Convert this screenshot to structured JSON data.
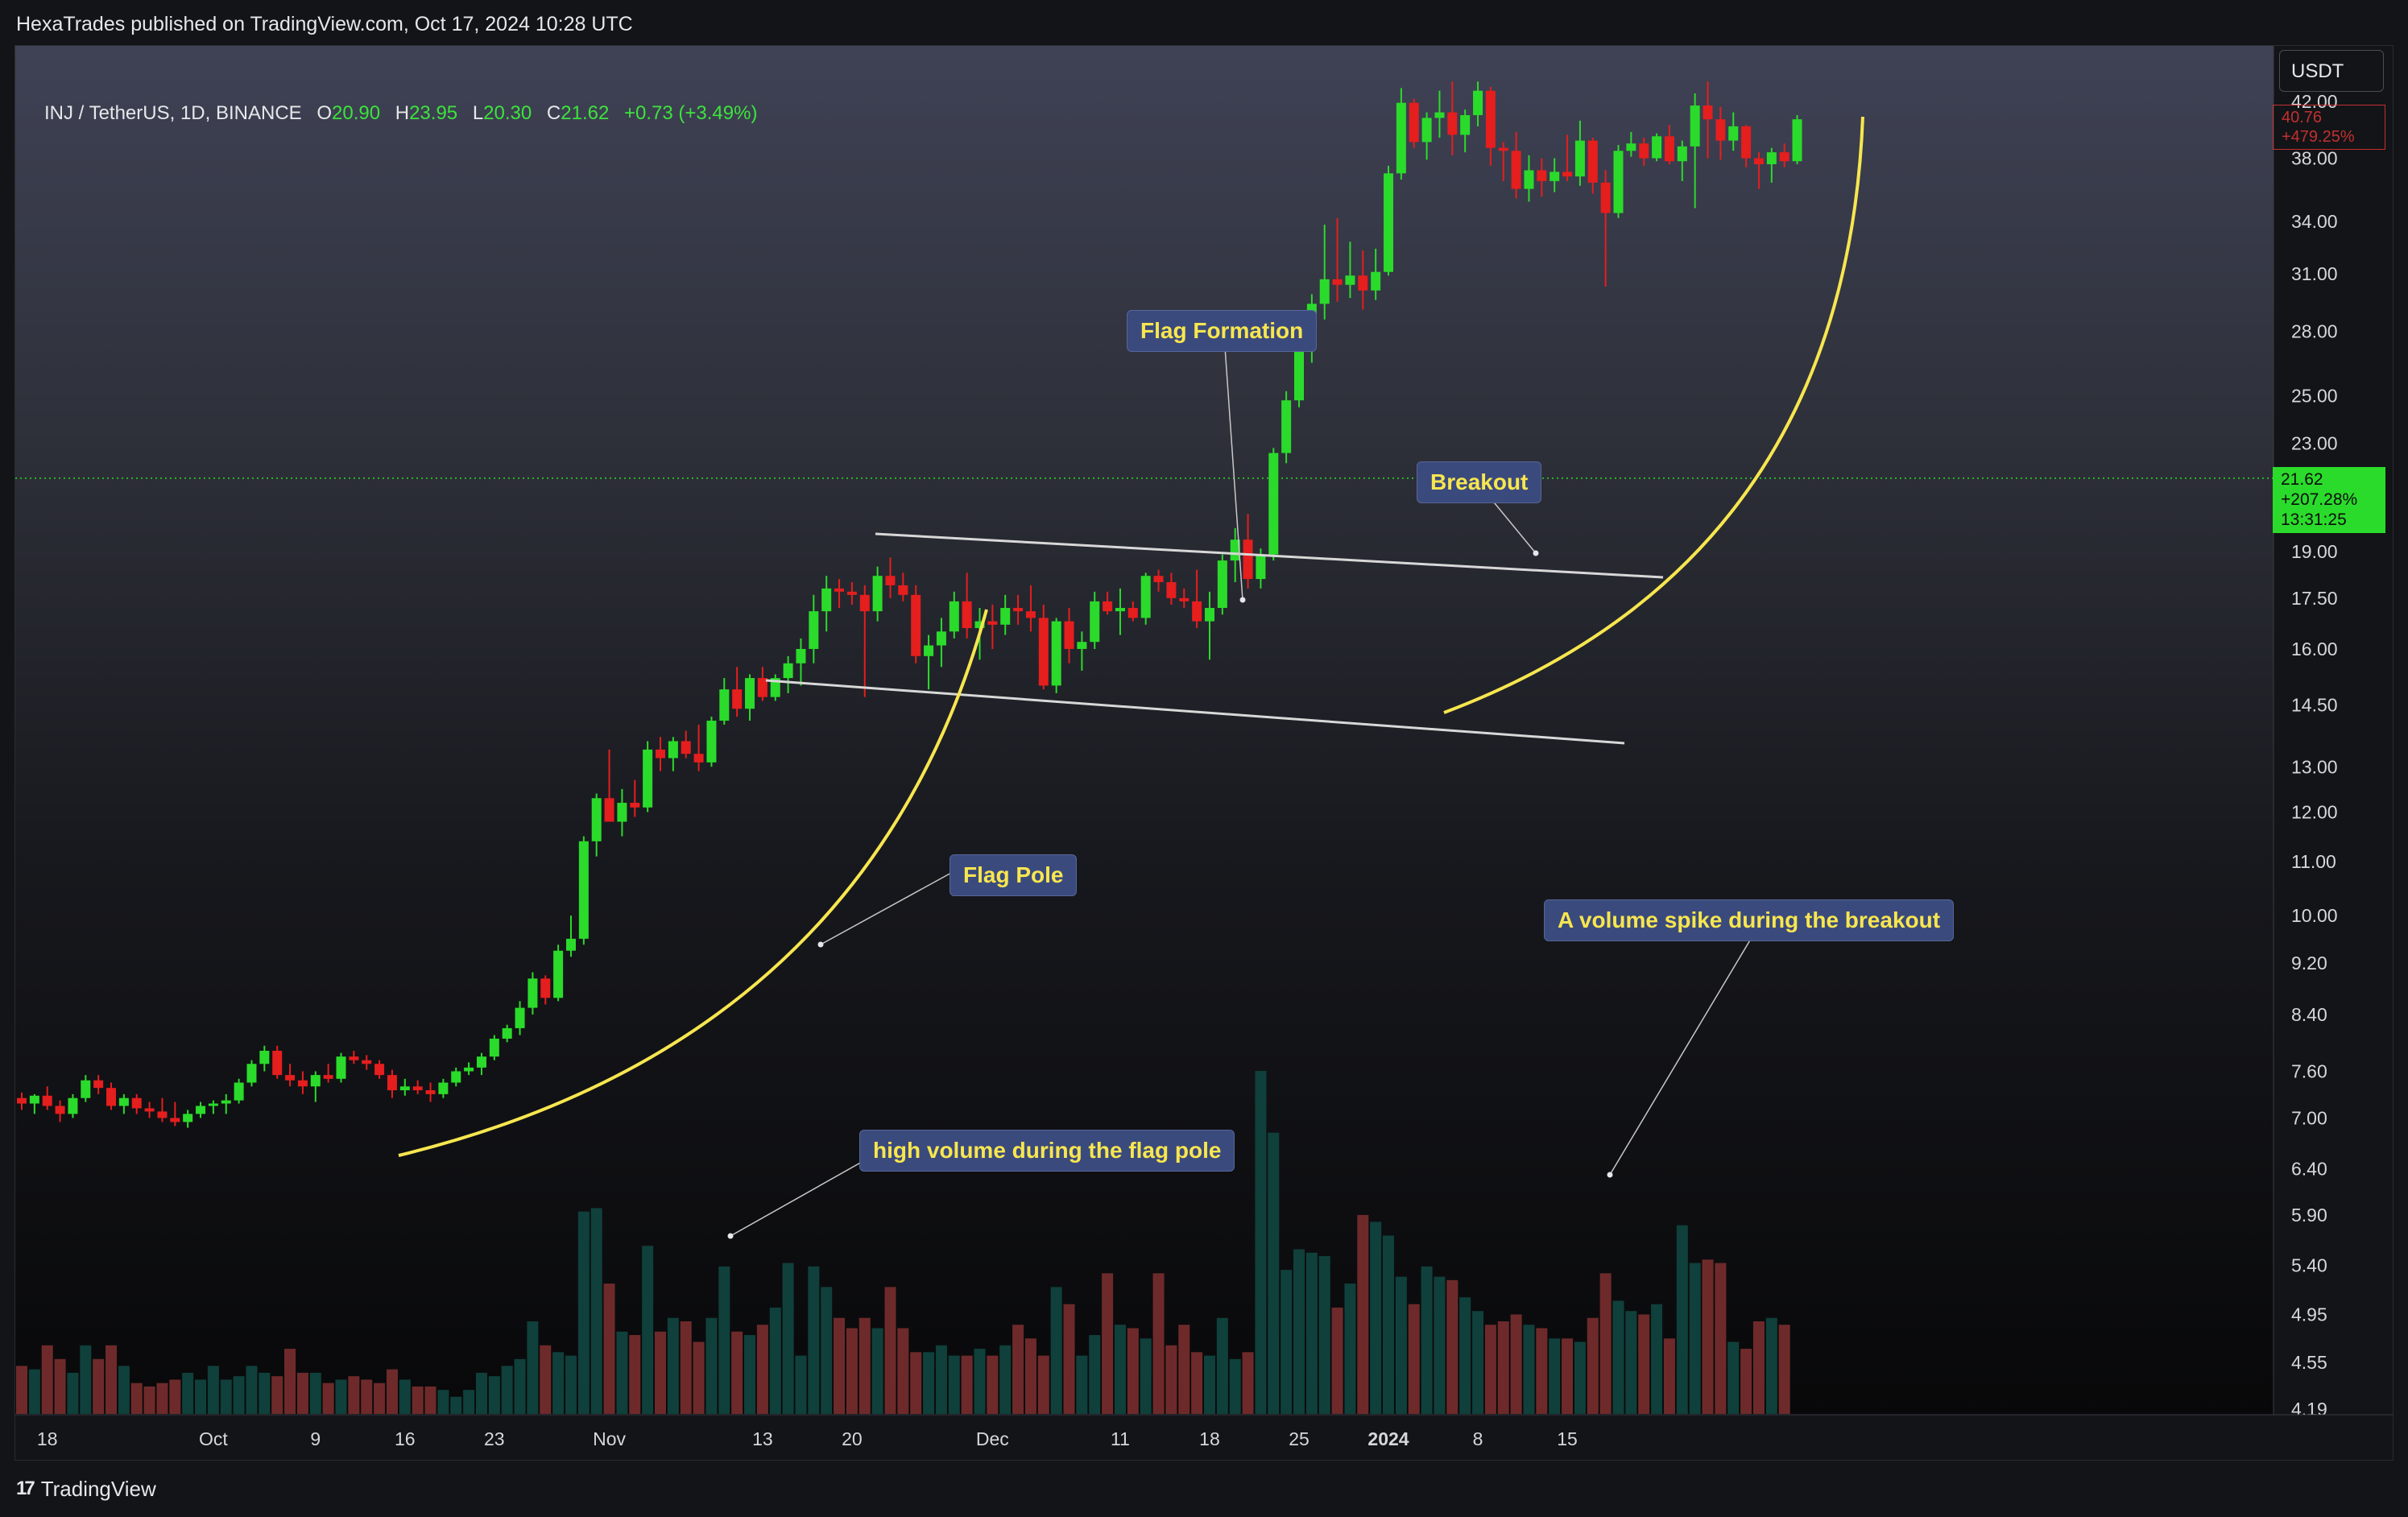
{
  "header": {
    "publisher_line": "HexaTrades published on TradingView.com, Oct 17, 2024 10:28 UTC"
  },
  "legend": {
    "symbol": "INJ / TetherUS, 1D, BINANCE",
    "o_label": "O",
    "o_value": "20.90",
    "h_label": "H",
    "h_value": "23.95",
    "l_label": "L",
    "l_value": "20.30",
    "c_label": "C",
    "c_value": "21.62",
    "change": "+0.73 (+3.49%)"
  },
  "price_axis": {
    "currency": "USDT",
    "current_price": "21.62",
    "current_change": "+207.28%",
    "countdown": "13:31:25",
    "top_price": "40.76",
    "top_change": "+479.25%"
  },
  "annotations": {
    "flag_formation": "Flag Formation",
    "breakout": "Breakout",
    "flag_pole": "Flag Pole",
    "volume_spike": "A volume spike during the breakout",
    "high_volume": "high volume during the flag pole"
  },
  "footer": {
    "brand": "TradingView",
    "logo_glyph": "17"
  },
  "colors": {
    "up": "#2bdb2b",
    "down": "#e51e1e",
    "vol_up": "#10403b",
    "vol_down": "#6e2a2a",
    "curve": "#f7e64f",
    "trendline": "#d8d8d8",
    "annotation_bg": "#3b4a7c",
    "annotation_text": "#f7e64f"
  },
  "chart_data": {
    "type": "candlestick",
    "scale": "log",
    "price_ticks": [
      42.0,
      38.0,
      34.0,
      31.0,
      28.0,
      25.0,
      23.0,
      19.0,
      17.5,
      16.0,
      14.5,
      13.0,
      12.0,
      11.0,
      10.0,
      9.2,
      8.4,
      7.6,
      7.0,
      6.4,
      5.9,
      5.4,
      4.95,
      4.55,
      4.19
    ],
    "date_labels": [
      {
        "date": "2023-09-18",
        "label": "18"
      },
      {
        "date": "2023-10-01",
        "label": "Oct"
      },
      {
        "date": "2023-10-09",
        "label": "9"
      },
      {
        "date": "2023-10-16",
        "label": "16"
      },
      {
        "date": "2023-10-23",
        "label": "23"
      },
      {
        "date": "2023-11-01",
        "label": "Nov"
      },
      {
        "date": "2023-11-13",
        "label": "13"
      },
      {
        "date": "2023-11-20",
        "label": "20"
      },
      {
        "date": "2023-12-01",
        "label": "Dec"
      },
      {
        "date": "2023-12-11",
        "label": "11"
      },
      {
        "date": "2023-12-18",
        "label": "18"
      },
      {
        "date": "2023-12-25",
        "label": "25"
      },
      {
        "date": "2024-01-01",
        "label": "2024",
        "bold": true
      },
      {
        "date": "2024-01-08",
        "label": "8"
      },
      {
        "date": "2024-01-15",
        "label": "15"
      }
    ],
    "candles": [
      [
        "2023-09-16",
        7.25,
        7.32,
        7.1,
        7.18
      ],
      [
        "2023-09-17",
        7.18,
        7.3,
        7.05,
        7.28
      ],
      [
        "2023-09-18",
        7.28,
        7.4,
        7.1,
        7.15
      ],
      [
        "2023-09-19",
        7.15,
        7.22,
        6.95,
        7.05
      ],
      [
        "2023-09-20",
        7.05,
        7.3,
        7.0,
        7.25
      ],
      [
        "2023-09-21",
        7.25,
        7.55,
        7.2,
        7.48
      ],
      [
        "2023-09-22",
        7.48,
        7.55,
        7.3,
        7.38
      ],
      [
        "2023-09-23",
        7.38,
        7.45,
        7.1,
        7.15
      ],
      [
        "2023-09-24",
        7.15,
        7.3,
        7.05,
        7.25
      ],
      [
        "2023-09-25",
        7.25,
        7.3,
        7.05,
        7.12
      ],
      [
        "2023-09-26",
        7.12,
        7.2,
        7.0,
        7.08
      ],
      [
        "2023-09-27",
        7.08,
        7.25,
        6.95,
        7.0
      ],
      [
        "2023-09-28",
        7.0,
        7.2,
        6.9,
        6.95
      ],
      [
        "2023-09-29",
        6.95,
        7.1,
        6.88,
        7.05
      ],
      [
        "2023-09-30",
        7.05,
        7.2,
        7.0,
        7.15
      ],
      [
        "2023-10-01",
        7.15,
        7.22,
        7.05,
        7.18
      ],
      [
        "2023-10-02",
        7.18,
        7.3,
        7.05,
        7.22
      ],
      [
        "2023-10-03",
        7.22,
        7.5,
        7.18,
        7.45
      ],
      [
        "2023-10-04",
        7.45,
        7.75,
        7.4,
        7.7
      ],
      [
        "2023-10-05",
        7.7,
        7.95,
        7.6,
        7.88
      ],
      [
        "2023-10-06",
        7.88,
        7.95,
        7.5,
        7.55
      ],
      [
        "2023-10-07",
        7.55,
        7.7,
        7.4,
        7.48
      ],
      [
        "2023-10-08",
        7.48,
        7.6,
        7.3,
        7.4
      ],
      [
        "2023-10-09",
        7.4,
        7.6,
        7.2,
        7.55
      ],
      [
        "2023-10-10",
        7.55,
        7.7,
        7.45,
        7.5
      ],
      [
        "2023-10-11",
        7.5,
        7.85,
        7.45,
        7.8
      ],
      [
        "2023-10-12",
        7.8,
        7.88,
        7.7,
        7.75
      ],
      [
        "2023-10-13",
        7.75,
        7.82,
        7.62,
        7.7
      ],
      [
        "2023-10-14",
        7.7,
        7.75,
        7.5,
        7.55
      ],
      [
        "2023-10-15",
        7.55,
        7.62,
        7.25,
        7.35
      ],
      [
        "2023-10-16",
        7.35,
        7.5,
        7.28,
        7.4
      ],
      [
        "2023-10-17",
        7.4,
        7.48,
        7.3,
        7.35
      ],
      [
        "2023-10-18",
        7.35,
        7.45,
        7.2,
        7.3
      ],
      [
        "2023-10-19",
        7.3,
        7.5,
        7.25,
        7.45
      ],
      [
        "2023-10-20",
        7.45,
        7.65,
        7.4,
        7.6
      ],
      [
        "2023-10-21",
        7.6,
        7.72,
        7.55,
        7.65
      ],
      [
        "2023-10-22",
        7.65,
        7.85,
        7.55,
        7.8
      ],
      [
        "2023-10-23",
        7.8,
        8.1,
        7.75,
        8.05
      ],
      [
        "2023-10-24",
        8.05,
        8.25,
        8.0,
        8.2
      ],
      [
        "2023-10-25",
        8.2,
        8.6,
        8.1,
        8.5
      ],
      [
        "2023-10-26",
        8.5,
        9.05,
        8.4,
        8.95
      ],
      [
        "2023-10-27",
        8.95,
        9.0,
        8.55,
        8.65
      ],
      [
        "2023-10-28",
        8.65,
        9.5,
        8.6,
        9.4
      ],
      [
        "2023-10-29",
        9.4,
        10.0,
        9.3,
        9.6
      ],
      [
        "2023-10-30",
        9.6,
        11.5,
        9.5,
        11.4
      ],
      [
        "2023-10-31",
        11.4,
        12.4,
        11.1,
        12.3
      ],
      [
        "2023-11-01",
        12.3,
        13.4,
        12.0,
        11.8
      ],
      [
        "2023-11-02",
        11.8,
        12.5,
        11.5,
        12.2
      ],
      [
        "2023-11-03",
        12.2,
        12.7,
        11.9,
        12.1
      ],
      [
        "2023-11-04",
        12.1,
        13.6,
        12.0,
        13.4
      ],
      [
        "2023-11-05",
        13.4,
        13.7,
        12.9,
        13.2
      ],
      [
        "2023-11-06",
        13.2,
        13.7,
        12.9,
        13.6
      ],
      [
        "2023-11-07",
        13.6,
        13.85,
        13.2,
        13.3
      ],
      [
        "2023-11-08",
        13.3,
        14.0,
        12.9,
        13.1
      ],
      [
        "2023-11-09",
        13.1,
        14.2,
        13.0,
        14.1
      ],
      [
        "2023-11-10",
        14.1,
        15.2,
        14.0,
        14.9
      ],
      [
        "2023-11-11",
        14.9,
        15.5,
        14.2,
        14.4
      ],
      [
        "2023-11-12",
        14.4,
        15.3,
        14.1,
        15.2
      ],
      [
        "2023-11-13",
        15.2,
        15.5,
        14.6,
        14.7
      ],
      [
        "2023-11-14",
        14.7,
        15.3,
        14.6,
        15.2
      ],
      [
        "2023-11-15",
        15.2,
        15.8,
        14.8,
        15.6
      ],
      [
        "2023-11-16",
        15.6,
        16.3,
        15.0,
        16.0
      ],
      [
        "2023-11-17",
        16.0,
        17.6,
        15.6,
        17.1
      ],
      [
        "2023-11-18",
        17.1,
        18.2,
        16.5,
        17.8
      ],
      [
        "2023-11-19",
        17.8,
        18.1,
        17.2,
        17.7
      ],
      [
        "2023-11-20",
        17.7,
        18.0,
        17.3,
        17.6
      ],
      [
        "2023-11-21",
        17.6,
        17.9,
        14.7,
        17.1
      ],
      [
        "2023-11-22",
        17.1,
        18.5,
        16.8,
        18.2
      ],
      [
        "2023-11-23",
        18.2,
        18.8,
        17.5,
        17.9
      ],
      [
        "2023-11-24",
        17.9,
        18.3,
        17.4,
        17.6
      ],
      [
        "2023-11-25",
        17.6,
        17.9,
        15.6,
        15.8
      ],
      [
        "2023-11-26",
        15.8,
        16.4,
        14.9,
        16.1
      ],
      [
        "2023-11-27",
        16.1,
        16.9,
        15.5,
        16.5
      ],
      [
        "2023-11-28",
        16.5,
        17.7,
        16.3,
        17.4
      ],
      [
        "2023-11-29",
        17.4,
        18.3,
        16.3,
        16.6
      ],
      [
        "2023-11-30",
        16.6,
        17.2,
        15.7,
        16.8
      ],
      [
        "2023-12-01",
        16.8,
        17.3,
        16.0,
        16.7
      ],
      [
        "2023-12-02",
        16.7,
        17.6,
        16.4,
        17.2
      ],
      [
        "2023-12-03",
        17.2,
        17.6,
        16.7,
        17.1
      ],
      [
        "2023-12-04",
        17.1,
        17.9,
        16.5,
        16.9
      ],
      [
        "2023-12-05",
        16.9,
        17.3,
        14.9,
        15.0
      ],
      [
        "2023-12-06",
        15.0,
        16.9,
        14.8,
        16.8
      ],
      [
        "2023-12-07",
        16.8,
        17.2,
        15.6,
        16.0
      ],
      [
        "2023-12-08",
        16.0,
        16.5,
        15.4,
        16.2
      ],
      [
        "2023-12-09",
        16.2,
        17.7,
        16.0,
        17.4
      ],
      [
        "2023-12-10",
        17.4,
        17.7,
        17.0,
        17.1
      ],
      [
        "2023-12-11",
        17.1,
        17.8,
        16.4,
        17.2
      ],
      [
        "2023-12-12",
        17.2,
        17.4,
        16.8,
        16.9
      ],
      [
        "2023-12-13",
        16.9,
        18.3,
        16.7,
        18.2
      ],
      [
        "2023-12-14",
        18.2,
        18.4,
        17.7,
        18.0
      ],
      [
        "2023-12-15",
        18.0,
        18.3,
        17.3,
        17.5
      ],
      [
        "2023-12-16",
        17.5,
        17.8,
        17.2,
        17.4
      ],
      [
        "2023-12-17",
        17.4,
        18.4,
        16.6,
        16.8
      ],
      [
        "2023-12-18",
        16.8,
        17.7,
        15.7,
        17.2
      ],
      [
        "2023-12-19",
        17.2,
        18.9,
        17.0,
        18.7
      ],
      [
        "2023-12-20",
        18.7,
        19.8,
        18.0,
        19.4
      ],
      [
        "2023-12-21",
        19.4,
        20.3,
        17.8,
        18.1
      ],
      [
        "2023-12-22",
        18.1,
        19.1,
        17.8,
        18.9
      ],
      [
        "2023-12-23",
        18.9,
        22.8,
        18.7,
        22.6
      ],
      [
        "2023-12-24",
        22.6,
        25.2,
        22.2,
        24.8
      ],
      [
        "2023-12-25",
        24.8,
        27.9,
        24.5,
        27.5
      ],
      [
        "2023-12-26",
        27.5,
        29.9,
        26.5,
        29.4
      ],
      [
        "2023-12-27",
        29.4,
        33.8,
        28.6,
        30.7
      ],
      [
        "2023-12-28",
        30.7,
        34.2,
        29.5,
        30.4
      ],
      [
        "2023-12-29",
        30.4,
        32.8,
        29.7,
        30.9
      ],
      [
        "2023-12-30",
        30.9,
        32.3,
        29.1,
        30.1
      ],
      [
        "2023-12-31",
        30.1,
        32.4,
        29.6,
        31.1
      ],
      [
        "2024-01-01",
        31.1,
        37.5,
        30.9,
        37.0
      ],
      [
        "2024-01-02",
        37.0,
        43.0,
        36.6,
        41.9
      ],
      [
        "2024-01-03",
        41.9,
        42.2,
        38.7,
        39.1
      ],
      [
        "2024-01-04",
        39.1,
        41.2,
        37.9,
        40.8
      ],
      [
        "2024-01-05",
        40.8,
        42.8,
        39.4,
        41.2
      ],
      [
        "2024-01-06",
        41.2,
        43.5,
        38.2,
        39.6
      ],
      [
        "2024-01-07",
        39.6,
        41.4,
        38.4,
        41.0
      ],
      [
        "2024-01-08",
        41.0,
        43.5,
        40.2,
        42.8
      ],
      [
        "2024-01-09",
        42.8,
        43.1,
        37.5,
        38.7
      ],
      [
        "2024-01-10",
        38.7,
        39.1,
        36.5,
        38.5
      ],
      [
        "2024-01-11",
        38.5,
        39.8,
        35.4,
        36.0
      ],
      [
        "2024-01-12",
        36.0,
        38.2,
        35.2,
        37.2
      ],
      [
        "2024-01-13",
        37.2,
        38.0,
        35.5,
        36.5
      ],
      [
        "2024-01-14",
        36.5,
        38.0,
        35.8,
        37.1
      ],
      [
        "2024-01-15",
        37.1,
        39.6,
        36.5,
        36.8
      ],
      [
        "2024-01-16",
        36.8,
        40.6,
        36.2,
        39.2
      ],
      [
        "2024-01-17",
        39.2,
        39.4,
        35.7,
        36.4
      ],
      [
        "2024-01-18",
        36.4,
        37.2,
        30.3,
        34.5
      ],
      [
        "2024-01-19",
        34.5,
        38.9,
        34.2,
        38.5
      ],
      [
        "2024-01-20",
        38.5,
        39.8,
        38.1,
        39.0
      ],
      [
        "2024-01-21",
        39.0,
        39.4,
        37.5,
        38.0
      ],
      [
        "2024-01-22",
        38.0,
        39.7,
        37.8,
        39.5
      ],
      [
        "2024-01-23",
        39.5,
        40.3,
        37.6,
        37.8
      ],
      [
        "2024-01-24",
        37.8,
        39.2,
        36.5,
        38.8
      ],
      [
        "2024-01-25",
        38.8,
        42.6,
        34.8,
        41.7
      ],
      [
        "2024-01-26",
        41.7,
        43.5,
        38.0,
        40.7
      ],
      [
        "2024-01-27",
        40.7,
        41.6,
        37.9,
        39.2
      ],
      [
        "2024-01-28",
        39.2,
        41.2,
        38.5,
        40.2
      ],
      [
        "2024-01-29",
        40.2,
        40.3,
        37.4,
        38.0
      ],
      [
        "2024-01-30",
        38.0,
        38.4,
        36.0,
        37.6
      ],
      [
        "2024-01-31",
        37.6,
        38.7,
        36.4,
        38.4
      ],
      [
        "2024-02-01",
        38.4,
        39.0,
        37.4,
        37.8
      ],
      [
        "2024-02-02",
        37.8,
        41.0,
        37.6,
        40.7
      ]
    ],
    "volumes_relative": [
      0.14,
      0.13,
      0.2,
      0.16,
      0.12,
      0.2,
      0.16,
      0.2,
      0.14,
      0.09,
      0.08,
      0.09,
      0.1,
      0.12,
      0.1,
      0.14,
      0.1,
      0.11,
      0.14,
      0.12,
      0.11,
      0.19,
      0.12,
      0.12,
      0.09,
      0.1,
      0.11,
      0.1,
      0.09,
      0.13,
      0.1,
      0.08,
      0.08,
      0.07,
      0.05,
      0.07,
      0.12,
      0.11,
      0.14,
      0.16,
      0.27,
      0.2,
      0.18,
      0.17,
      0.59,
      0.6,
      0.38,
      0.24,
      0.23,
      0.49,
      0.24,
      0.28,
      0.27,
      0.21,
      0.28,
      0.43,
      0.24,
      0.23,
      0.26,
      0.31,
      0.44,
      0.17,
      0.43,
      0.37,
      0.28,
      0.25,
      0.28,
      0.25,
      0.37,
      0.25,
      0.18,
      0.18,
      0.2,
      0.17,
      0.17,
      0.19,
      0.17,
      0.2,
      0.26,
      0.22,
      0.17,
      0.37,
      0.32,
      0.17,
      0.23,
      0.41,
      0.26,
      0.25,
      0.22,
      0.41,
      0.2,
      0.26,
      0.18,
      0.17,
      0.28,
      0.16,
      0.18,
      1.0,
      0.82,
      0.42,
      0.48,
      0.47,
      0.46,
      0.31,
      0.38,
      0.58,
      0.56,
      0.52,
      0.4,
      0.32,
      0.43,
      0.4,
      0.39,
      0.34,
      0.3,
      0.26,
      0.27,
      0.29,
      0.26,
      0.25,
      0.22,
      0.22,
      0.21,
      0.28,
      0.41,
      0.33,
      0.3,
      0.29,
      0.32,
      0.22,
      0.55,
      0.44,
      0.45,
      0.44,
      0.21,
      0.19,
      0.27,
      0.28,
      0.26
    ],
    "volume_scale": "relative_0_to_1",
    "current_price": 21.62
  }
}
